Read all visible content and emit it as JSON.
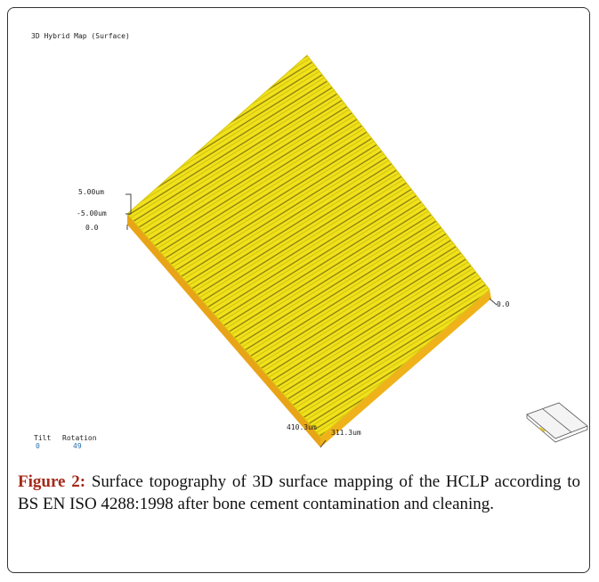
{
  "figure": {
    "image": {
      "title": "3D Hybrid Map (Surface)",
      "z_labels": [
        "5.00um",
        "-5.00um",
        "0.0"
      ],
      "x_end_label": "0.0",
      "x_length_label": "410.3um",
      "y_length_label": "311.3um",
      "tilt": {
        "label": "Tilt",
        "value": 0
      },
      "rotation": {
        "label": "Rotation",
        "value": 49
      }
    },
    "caption": {
      "label": "Figure 2:",
      "text": " Surface topography of 3D surface mapping of the HCLP according to BS EN ISO 4288:1998 after bone cement contamination and cleaning."
    }
  }
}
